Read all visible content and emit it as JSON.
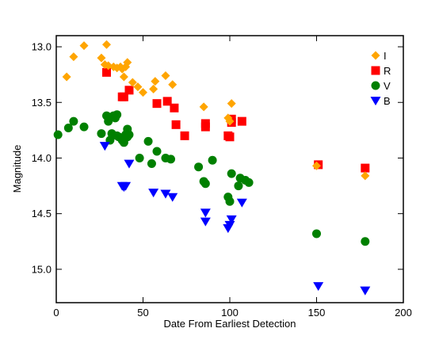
{
  "chart_data": {
    "type": "scatter",
    "xlabel": "Date From Earliest Detection",
    "ylabel": "Magnitude",
    "xlim": [
      0,
      200
    ],
    "ylim": [
      15.3,
      12.9
    ],
    "y_inverted": true,
    "x_ticks": [
      0,
      50,
      100,
      150,
      200
    ],
    "y_ticks": [
      13.0,
      13.5,
      14.0,
      14.5,
      15.0
    ],
    "y_tick_labels": [
      "13.0",
      "13.5",
      "14.0",
      "14.5",
      "15.0"
    ],
    "grid": false,
    "legend_position": "top-right",
    "series": [
      {
        "name": "I",
        "marker": "diamond",
        "color": "#ffa500",
        "x": [
          6,
          10,
          16,
          26,
          28,
          29,
          30,
          33,
          35,
          37,
          38,
          39,
          40,
          41,
          44,
          47,
          50,
          56,
          57,
          63,
          67,
          85,
          99,
          100,
          101,
          150,
          178
        ],
        "y": [
          13.27,
          13.09,
          12.99,
          13.1,
          13.16,
          12.98,
          13.17,
          13.18,
          13.19,
          13.18,
          13.2,
          13.27,
          13.18,
          13.14,
          13.32,
          13.36,
          13.41,
          13.38,
          13.31,
          13.26,
          13.34,
          13.54,
          13.64,
          13.67,
          13.51,
          14.07,
          14.16
        ]
      },
      {
        "name": "R",
        "marker": "square",
        "color": "#ff0000",
        "x": [
          29,
          38,
          39,
          42,
          58,
          64,
          68,
          69,
          74,
          86,
          86,
          99,
          100,
          101,
          101,
          107,
          151,
          178
        ],
        "y": [
          13.23,
          13.45,
          13.45,
          13.39,
          13.51,
          13.49,
          13.55,
          13.7,
          13.8,
          13.72,
          13.69,
          13.8,
          13.81,
          13.68,
          13.65,
          13.67,
          14.06,
          14.09
        ]
      },
      {
        "name": "V",
        "marker": "circle",
        "color": "#008000",
        "x": [
          1,
          7,
          10,
          16,
          26,
          29,
          30,
          30,
          31,
          32,
          33,
          34,
          35,
          35,
          36,
          38,
          39,
          39,
          40,
          41,
          41,
          42,
          48,
          53,
          55,
          58,
          63,
          66,
          82,
          85,
          86,
          90,
          99,
          100,
          101,
          105,
          106,
          109,
          111,
          150,
          178
        ],
        "y": [
          13.79,
          13.73,
          13.67,
          13.72,
          13.78,
          13.62,
          13.63,
          13.67,
          13.84,
          13.78,
          13.62,
          13.64,
          13.8,
          13.61,
          13.81,
          13.84,
          13.86,
          13.82,
          13.79,
          13.81,
          13.74,
          13.79,
          14.0,
          13.85,
          14.05,
          13.94,
          14.0,
          14.01,
          14.08,
          14.21,
          14.23,
          14.02,
          14.35,
          14.39,
          14.14,
          14.25,
          14.18,
          14.2,
          14.22,
          14.68,
          14.75
        ]
      },
      {
        "name": "B",
        "marker": "triangle-down",
        "color": "#0000ff",
        "x": [
          28,
          38,
          39,
          40,
          42,
          56,
          63,
          67,
          86,
          86,
          99,
          100,
          101,
          107,
          151,
          178
        ],
        "y": [
          13.89,
          14.25,
          14.26,
          14.25,
          14.05,
          14.31,
          14.32,
          14.35,
          14.49,
          14.57,
          14.63,
          14.6,
          14.55,
          14.4,
          15.15,
          15.19
        ]
      }
    ]
  }
}
